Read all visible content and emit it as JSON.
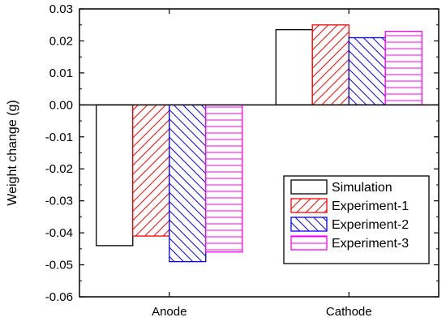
{
  "chart_data": {
    "type": "bar",
    "title": "",
    "xlabel": "",
    "ylabel": "Weight change (g)",
    "categories": [
      "Anode",
      "Cathode"
    ],
    "ylim": [
      -0.06,
      0.03
    ],
    "yticks": [
      "0.03",
      "0.02",
      "0.01",
      "0.00",
      "-0.01",
      "-0.02",
      "-0.03",
      "-0.04",
      "-0.05",
      "-0.06"
    ],
    "ytick_values": [
      0.03,
      0.02,
      0.01,
      0.0,
      -0.01,
      -0.02,
      -0.03,
      -0.04,
      -0.05,
      -0.06
    ],
    "grid": false,
    "legend_position": "lower-right",
    "series": [
      {
        "name": "Simulation",
        "values": [
          -0.044,
          0.0235
        ],
        "color": "#000000",
        "pattern": "none"
      },
      {
        "name": "Experiment-1",
        "values": [
          -0.041,
          0.025
        ],
        "color": "#ff0000",
        "pattern": "diag-up"
      },
      {
        "name": "Experiment-2",
        "values": [
          -0.049,
          0.021
        ],
        "color": "#0000ff",
        "pattern": "diag-down"
      },
      {
        "name": "Experiment-3",
        "values": [
          -0.046,
          0.023
        ],
        "color": "#ff00ff",
        "pattern": "horizontal"
      }
    ]
  }
}
